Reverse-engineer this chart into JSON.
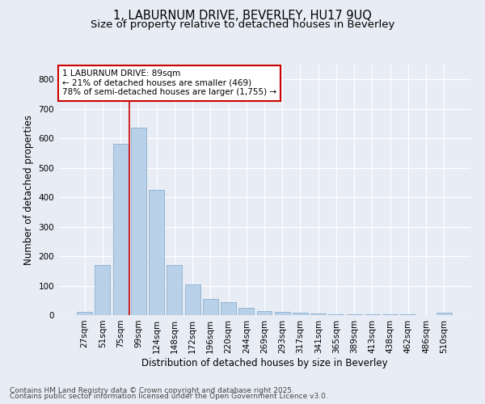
{
  "title1": "1, LABURNUM DRIVE, BEVERLEY, HU17 9UQ",
  "title2": "Size of property relative to detached houses in Beverley",
  "xlabel": "Distribution of detached houses by size in Beverley",
  "ylabel": "Number of detached properties",
  "categories": [
    "27sqm",
    "51sqm",
    "75sqm",
    "99sqm",
    "124sqm",
    "148sqm",
    "172sqm",
    "196sqm",
    "220sqm",
    "244sqm",
    "269sqm",
    "293sqm",
    "317sqm",
    "341sqm",
    "365sqm",
    "389sqm",
    "413sqm",
    "438sqm",
    "462sqm",
    "486sqm",
    "510sqm"
  ],
  "values": [
    10,
    170,
    580,
    635,
    425,
    170,
    105,
    55,
    45,
    25,
    15,
    10,
    8,
    5,
    4,
    3,
    3,
    2,
    2,
    1,
    8
  ],
  "bar_color": "#b8d0e8",
  "bar_edge_color": "#8ab0d0",
  "bg_color": "#e8edf5",
  "grid_color": "#ffffff",
  "vline_color": "#cc0000",
  "vline_x": 2.5,
  "annotation_text": "1 LABURNUM DRIVE: 89sqm\n← 21% of detached houses are smaller (469)\n78% of semi-detached houses are larger (1,755) →",
  "annotation_box_color": "#ffffff",
  "annotation_box_edge": "#cc0000",
  "footer1": "Contains HM Land Registry data © Crown copyright and database right 2025.",
  "footer2": "Contains public sector information licensed under the Open Government Licence v3.0.",
  "ylim": [
    0,
    850
  ],
  "yticks": [
    0,
    100,
    200,
    300,
    400,
    500,
    600,
    700,
    800
  ],
  "title_fontsize": 10.5,
  "subtitle_fontsize": 9.5,
  "axis_label_fontsize": 8.5,
  "tick_fontsize": 7.5,
  "annotation_fontsize": 7.5,
  "footer_fontsize": 6.5
}
